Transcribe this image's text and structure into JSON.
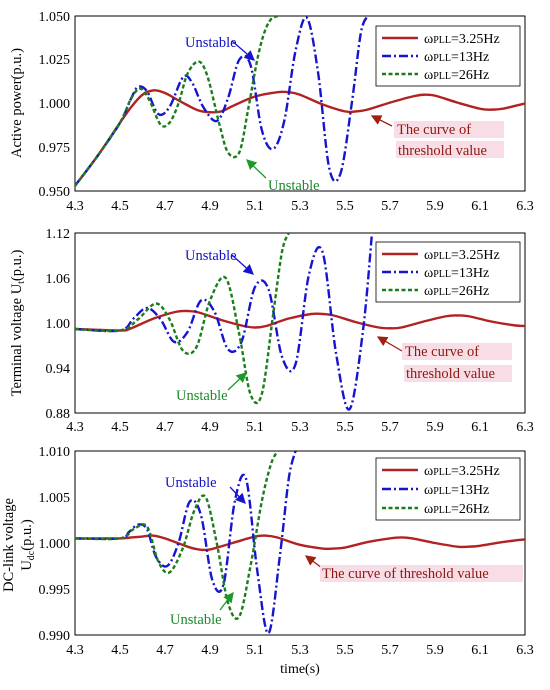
{
  "colors": {
    "series_3_25": "#b22222",
    "series_13": "#1515d0",
    "series_26": "#1b7d1b",
    "threshold_highlight": "#f9dde6",
    "text_blue": "#1010c8",
    "text_green": "#1a8a2a",
    "text_red": "#8b1a10"
  },
  "chart_data": [
    {
      "type": "line",
      "ylabel": "Active power(p.u.)",
      "xlim": [
        4.3,
        6.3
      ],
      "ylim": [
        0.95,
        1.05
      ],
      "xticks": [
        "4.3",
        "4.5",
        "4.7",
        "4.9",
        "5.1",
        "5.3",
        "5.5",
        "5.7",
        "5.9",
        "6.1",
        "6.3"
      ],
      "yticks": [
        "0.950",
        "0.975",
        "1.000",
        "1.025",
        "1.050"
      ],
      "legend": [
        "ωPLL=3.25Hz",
        "ωPLL=13Hz",
        "ωPLL=26Hz"
      ],
      "legend_position": "top-right",
      "annotations": {
        "unstable_blue": "Unstable",
        "unstable_green": "Unstable",
        "threshold_line1": "The curve of",
        "threshold_line2": "threshold value"
      },
      "series": [
        {
          "name": "ωPLL=3.25Hz",
          "x": [
            4.3,
            4.4,
            4.5,
            4.55,
            4.6,
            4.65,
            4.7,
            4.75,
            4.8,
            4.85,
            4.9,
            4.95,
            5.0,
            5.1,
            5.2,
            5.25,
            5.3,
            5.4,
            5.5,
            5.55,
            5.6,
            5.7,
            5.8,
            5.85,
            5.9,
            6.0,
            6.1,
            6.15,
            6.2,
            6.3
          ],
          "y": [
            0.953,
            0.97,
            0.989,
            0.998,
            1.005,
            1.0075,
            1.006,
            1.0025,
            0.999,
            0.996,
            0.995,
            0.9955,
            0.9985,
            1.004,
            1.0065,
            1.0065,
            1.005,
            0.9995,
            0.9955,
            0.9955,
            0.9965,
            1.0005,
            1.004,
            1.005,
            1.0045,
            1.0005,
            0.997,
            0.9965,
            0.997,
            1.0
          ]
        },
        {
          "name": "ωPLL=13Hz",
          "x": [
            4.3,
            4.4,
            4.5,
            4.55,
            4.58,
            4.62,
            4.67,
            4.72,
            4.78,
            4.82,
            4.87,
            4.93,
            4.98,
            5.03,
            5.08,
            5.13,
            5.18,
            5.23,
            5.28,
            5.33,
            5.38,
            5.43,
            5.48,
            5.53,
            5.57,
            5.6
          ],
          "y": [
            0.953,
            0.97,
            0.989,
            1.003,
            1.0095,
            1.007,
            0.994,
            0.998,
            1.015,
            1.012,
            0.998,
            0.99,
            1.003,
            1.025,
            1.022,
            0.985,
            0.974,
            0.99,
            1.03,
            1.049,
            1.018,
            0.963,
            0.96,
            1.0,
            1.04,
            1.05
          ]
        },
        {
          "name": "ωPLL=26Hz",
          "x": [
            4.3,
            4.4,
            4.5,
            4.55,
            4.59,
            4.63,
            4.68,
            4.72,
            4.76,
            4.8,
            4.85,
            4.89,
            4.94,
            4.98,
            5.03,
            5.07,
            5.11,
            5.14,
            5.17,
            5.2
          ],
          "y": [
            0.953,
            0.97,
            0.989,
            1.003,
            1.0085,
            1.002,
            0.988,
            0.989,
            1.0,
            1.017,
            1.024,
            1.015,
            0.989,
            0.972,
            0.972,
            0.997,
            1.025,
            1.04,
            1.048,
            1.05
          ]
        }
      ]
    },
    {
      "type": "line",
      "ylabel": "Terminal voltage Ut(p.u.)",
      "xlim": [
        4.3,
        6.3
      ],
      "ylim": [
        0.88,
        1.12
      ],
      "xticks": [
        "4.3",
        "4.5",
        "4.7",
        "4.9",
        "5.1",
        "5.3",
        "5.5",
        "5.7",
        "5.9",
        "6.1",
        "6.3"
      ],
      "yticks": [
        "0.88",
        "0.94",
        "1.00",
        "1.06",
        "1.12"
      ],
      "legend": [
        "ωPLL=3.25Hz",
        "ωPLL=13Hz",
        "ωPLL=26Hz"
      ],
      "legend_position": "top-right",
      "annotations": {
        "unstable_blue": "Unstable",
        "unstable_green": "Unstable",
        "threshold_line1": "The curve of",
        "threshold_line2": "threshold value"
      },
      "series": [
        {
          "name": "ωPLL=3.25Hz",
          "x": [
            4.3,
            4.5,
            4.55,
            4.65,
            4.75,
            4.8,
            4.85,
            4.95,
            5.05,
            5.1,
            5.15,
            5.25,
            5.35,
            5.4,
            5.45,
            5.55,
            5.65,
            5.7,
            5.75,
            5.85,
            5.95,
            6.0,
            6.05,
            6.15,
            6.25,
            6.3
          ],
          "y": [
            0.992,
            0.99,
            0.993,
            1.006,
            1.015,
            1.016,
            1.014,
            1.004,
            0.996,
            0.994,
            0.996,
            1.006,
            1.012,
            1.012,
            1.01,
            1.001,
            0.994,
            0.993,
            0.994,
            1.002,
            1.009,
            1.01,
            1.009,
            1.002,
            0.997,
            0.996
          ]
        },
        {
          "name": "ωPLL=13Hz",
          "x": [
            4.3,
            4.5,
            4.56,
            4.62,
            4.68,
            4.74,
            4.8,
            4.86,
            4.92,
            4.98,
            5.04,
            5.1,
            5.16,
            5.22,
            5.28,
            5.34,
            5.4,
            5.46,
            5.52,
            5.58,
            5.62
          ],
          "y": [
            0.992,
            0.99,
            1.006,
            1.02,
            1.005,
            0.975,
            0.988,
            1.03,
            1.015,
            0.965,
            0.975,
            1.048,
            1.045,
            0.955,
            0.945,
            1.065,
            1.095,
            0.96,
            0.885,
            0.99,
            1.12
          ]
        },
        {
          "name": "ωPLL=26Hz",
          "x": [
            4.3,
            4.5,
            4.58,
            4.66,
            4.72,
            4.78,
            4.84,
            4.9,
            4.97,
            5.03,
            5.08,
            5.13,
            5.18,
            5.22,
            5.25
          ],
          "y": [
            0.992,
            0.99,
            1.005,
            1.026,
            1.005,
            0.963,
            0.968,
            1.03,
            1.06,
            0.985,
            0.905,
            0.905,
            1.01,
            1.095,
            1.12
          ]
        }
      ]
    },
    {
      "type": "line",
      "ylabel": "DC-link voltage Udc(p.u.)",
      "xlim": [
        4.3,
        6.3
      ],
      "ylim": [
        0.99,
        1.01
      ],
      "xticks": [
        "4.3",
        "4.5",
        "4.7",
        "4.9",
        "5.1",
        "5.3",
        "5.5",
        "5.7",
        "5.9",
        "6.1",
        "6.3"
      ],
      "yticks": [
        "0.990",
        "0.995",
        "1.000",
        "1.005",
        "1.010"
      ],
      "legend": [
        "ωPLL=3.25Hz",
        "ωPLL=13Hz",
        "ωPLL=26Hz"
      ],
      "legend_position": "top-right",
      "xlabel": "time(s)",
      "annotations": {
        "unstable_blue": "Unstable",
        "unstable_green": "Unstable",
        "threshold_line1": "The curve of threshold value"
      },
      "series": [
        {
          "name": "ωPLL=3.25Hz",
          "x": [
            4.3,
            4.5,
            4.55,
            4.6,
            4.65,
            4.7,
            4.8,
            4.85,
            4.9,
            5.0,
            5.1,
            5.15,
            5.2,
            5.3,
            5.4,
            5.45,
            5.5,
            5.6,
            5.7,
            5.75,
            5.8,
            5.9,
            6.0,
            6.05,
            6.1,
            6.2,
            6.3
          ],
          "y": [
            1.0005,
            1.0005,
            1.0006,
            1.0007,
            1.0008,
            1.0005,
            0.9996,
            0.9993,
            0.9993,
            1.0,
            1.0007,
            1.0008,
            1.0006,
            0.9998,
            0.9994,
            0.9994,
            0.9995,
            1.0001,
            1.0005,
            1.0006,
            1.0005,
            1.0,
            0.9996,
            0.9996,
            0.9997,
            1.0001,
            1.0004
          ]
        },
        {
          "name": "ωPLL=13Hz",
          "x": [
            4.3,
            4.5,
            4.54,
            4.58,
            4.62,
            4.66,
            4.71,
            4.76,
            4.81,
            4.86,
            4.91,
            4.96,
            5.01,
            5.06,
            5.11,
            5.16,
            5.21,
            5.25,
            5.28
          ],
          "y": [
            1.0005,
            1.0005,
            1.0012,
            1.002,
            1.0015,
            0.9985,
            0.9975,
            1.0,
            1.0045,
            1.003,
            0.996,
            0.9955,
            1.0045,
            1.007,
            0.997,
            0.9902,
            0.9985,
            1.007,
            1.01
          ]
        },
        {
          "name": "ωPLL=26Hz",
          "x": [
            4.3,
            4.5,
            4.56,
            4.62,
            4.67,
            4.72,
            4.78,
            4.83,
            4.88,
            4.93,
            4.98,
            5.03,
            5.08,
            5.13,
            5.17,
            5.2
          ],
          "y": [
            1.0005,
            1.0005,
            1.0015,
            1.0018,
            0.998,
            0.9968,
            0.9995,
            1.0035,
            1.005,
            1.0,
            0.9935,
            0.992,
            0.9975,
            1.0045,
            1.0085,
            1.01
          ]
        }
      ]
    }
  ]
}
